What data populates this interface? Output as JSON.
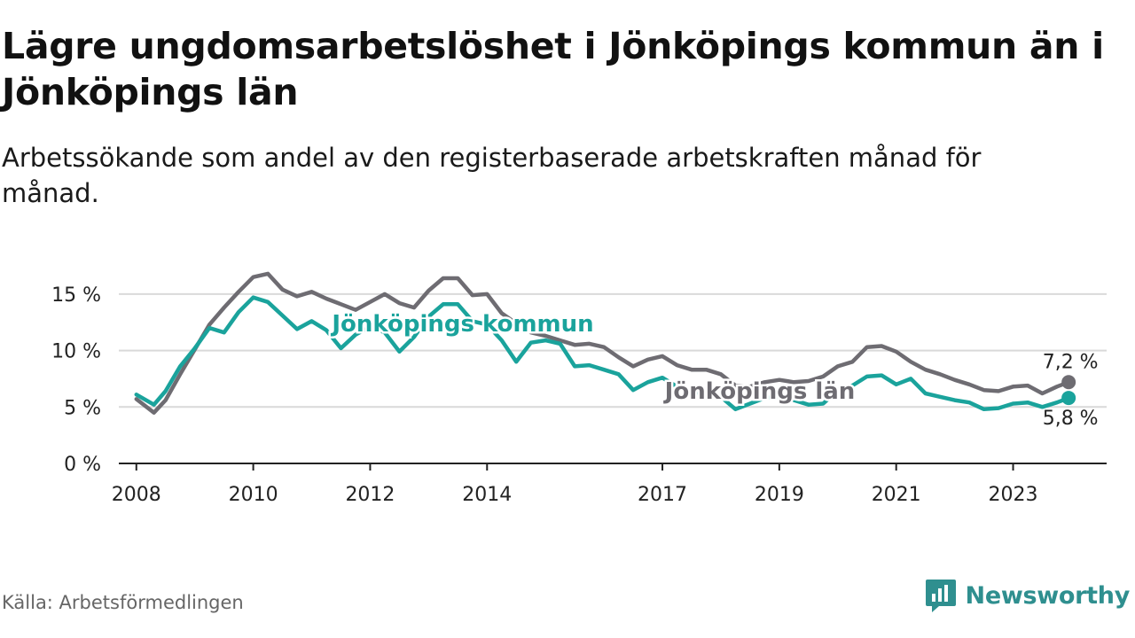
{
  "title": "Lägre ungdomsarbetslöshet i Jönköpings kommun än i Jönköpings län",
  "subtitle": "Arbetssökande som andel av den registerbaserade arbetskraften månad för månad.",
  "source": "Källa: Arbetsförmedlingen",
  "brand": {
    "name": "Newsworthy",
    "icon": "newsworthy-logo-icon"
  },
  "colors": {
    "kommun": "#1aa39c",
    "lan": "#6e6c72",
    "grid": "#d9d9d9",
    "axis": "#222222"
  },
  "chart_data": {
    "type": "line",
    "xlabel": "",
    "ylabel": "",
    "ylim": [
      0,
      17.5
    ],
    "x_unit": "year",
    "x_range": [
      2007.7,
      2024.6
    ],
    "x_ticks": [
      2008,
      2010,
      2012,
      2014,
      2017,
      2019,
      2021,
      2023
    ],
    "x_tick_labels": [
      "2008",
      "2010",
      "2012",
      "2014",
      "2017",
      "2019",
      "2021",
      "2023"
    ],
    "y_ticks": [
      0,
      5,
      10,
      15
    ],
    "y_tick_labels": [
      "0 %",
      "5 %",
      "10 %",
      "15 %"
    ],
    "grid": true,
    "series": [
      {
        "key": "lan",
        "name": "Jönköpings län",
        "end_label": "7,2 %",
        "values": [
          [
            2008.0,
            5.7
          ],
          [
            2008.3,
            4.5
          ],
          [
            2008.5,
            5.6
          ],
          [
            2008.75,
            7.9
          ],
          [
            2009.0,
            10.1
          ],
          [
            2009.25,
            12.3
          ],
          [
            2009.5,
            13.8
          ],
          [
            2009.75,
            15.2
          ],
          [
            2010.0,
            16.5
          ],
          [
            2010.25,
            16.8
          ],
          [
            2010.5,
            15.4
          ],
          [
            2010.75,
            14.8
          ],
          [
            2011.0,
            15.2
          ],
          [
            2011.25,
            14.6
          ],
          [
            2011.5,
            14.1
          ],
          [
            2011.75,
            13.6
          ],
          [
            2012.0,
            14.3
          ],
          [
            2012.25,
            15.0
          ],
          [
            2012.5,
            14.2
          ],
          [
            2012.75,
            13.8
          ],
          [
            2013.0,
            15.3
          ],
          [
            2013.25,
            16.4
          ],
          [
            2013.5,
            16.4
          ],
          [
            2013.75,
            14.9
          ],
          [
            2014.0,
            15.0
          ],
          [
            2014.25,
            13.3
          ],
          [
            2014.5,
            12.4
          ],
          [
            2014.75,
            11.6
          ],
          [
            2015.0,
            11.3
          ],
          [
            2015.25,
            10.9
          ],
          [
            2015.5,
            10.5
          ],
          [
            2015.75,
            10.6
          ],
          [
            2016.0,
            10.3
          ],
          [
            2016.25,
            9.4
          ],
          [
            2016.5,
            8.6
          ],
          [
            2016.75,
            9.2
          ],
          [
            2017.0,
            9.5
          ],
          [
            2017.25,
            8.7
          ],
          [
            2017.5,
            8.3
          ],
          [
            2017.75,
            8.3
          ],
          [
            2018.0,
            7.9
          ],
          [
            2018.25,
            6.9
          ],
          [
            2018.5,
            6.8
          ],
          [
            2018.75,
            7.2
          ],
          [
            2019.0,
            7.4
          ],
          [
            2019.25,
            7.2
          ],
          [
            2019.5,
            7.3
          ],
          [
            2019.75,
            7.7
          ],
          [
            2020.0,
            8.6
          ],
          [
            2020.25,
            9.0
          ],
          [
            2020.5,
            10.3
          ],
          [
            2020.75,
            10.4
          ],
          [
            2021.0,
            9.9
          ],
          [
            2021.25,
            9.0
          ],
          [
            2021.5,
            8.3
          ],
          [
            2021.75,
            7.9
          ],
          [
            2022.0,
            7.4
          ],
          [
            2022.25,
            7.0
          ],
          [
            2022.5,
            6.5
          ],
          [
            2022.75,
            6.4
          ],
          [
            2023.0,
            6.8
          ],
          [
            2023.25,
            6.9
          ],
          [
            2023.5,
            6.2
          ],
          [
            2023.75,
            6.8
          ],
          [
            2023.95,
            7.2
          ]
        ]
      },
      {
        "key": "kommun",
        "name": "Jönköpings kommun",
        "end_label": "5,8 %",
        "values": [
          [
            2008.0,
            6.1
          ],
          [
            2008.3,
            5.2
          ],
          [
            2008.5,
            6.4
          ],
          [
            2008.75,
            8.6
          ],
          [
            2009.0,
            10.2
          ],
          [
            2009.25,
            12.0
          ],
          [
            2009.5,
            11.6
          ],
          [
            2009.75,
            13.4
          ],
          [
            2010.0,
            14.7
          ],
          [
            2010.25,
            14.3
          ],
          [
            2010.5,
            13.1
          ],
          [
            2010.75,
            11.9
          ],
          [
            2011.0,
            12.6
          ],
          [
            2011.25,
            11.8
          ],
          [
            2011.5,
            10.2
          ],
          [
            2011.75,
            11.4
          ],
          [
            2012.0,
            12.1
          ],
          [
            2012.25,
            11.6
          ],
          [
            2012.5,
            9.9
          ],
          [
            2012.75,
            11.2
          ],
          [
            2013.0,
            13.0
          ],
          [
            2013.25,
            14.1
          ],
          [
            2013.5,
            14.1
          ],
          [
            2013.75,
            12.6
          ],
          [
            2014.0,
            12.3
          ],
          [
            2014.25,
            10.9
          ],
          [
            2014.5,
            9.0
          ],
          [
            2014.75,
            10.7
          ],
          [
            2015.0,
            10.9
          ],
          [
            2015.25,
            10.6
          ],
          [
            2015.5,
            8.6
          ],
          [
            2015.75,
            8.7
          ],
          [
            2016.0,
            8.3
          ],
          [
            2016.25,
            7.9
          ],
          [
            2016.5,
            6.5
          ],
          [
            2016.75,
            7.2
          ],
          [
            2017.0,
            7.6
          ],
          [
            2017.25,
            6.8
          ],
          [
            2017.5,
            6.2
          ],
          [
            2017.75,
            6.4
          ],
          [
            2018.0,
            5.9
          ],
          [
            2018.25,
            4.8
          ],
          [
            2018.5,
            5.3
          ],
          [
            2018.75,
            5.8
          ],
          [
            2019.0,
            5.9
          ],
          [
            2019.25,
            5.6
          ],
          [
            2019.5,
            5.2
          ],
          [
            2019.75,
            5.3
          ],
          [
            2020.0,
            6.5
          ],
          [
            2020.25,
            6.9
          ],
          [
            2020.5,
            7.7
          ],
          [
            2020.75,
            7.8
          ],
          [
            2021.0,
            7.0
          ],
          [
            2021.25,
            7.5
          ],
          [
            2021.5,
            6.2
          ],
          [
            2021.75,
            5.9
          ],
          [
            2022.0,
            5.6
          ],
          [
            2022.25,
            5.4
          ],
          [
            2022.5,
            4.8
          ],
          [
            2022.75,
            4.9
          ],
          [
            2023.0,
            5.3
          ],
          [
            2023.25,
            5.4
          ],
          [
            2023.5,
            5.0
          ],
          [
            2023.75,
            5.4
          ],
          [
            2023.95,
            5.8
          ]
        ]
      }
    ],
    "annotations": [
      {
        "text": "Jönköpings kommun",
        "series": "kommun"
      },
      {
        "text": "Jönköpings län",
        "series": "lan"
      }
    ]
  }
}
